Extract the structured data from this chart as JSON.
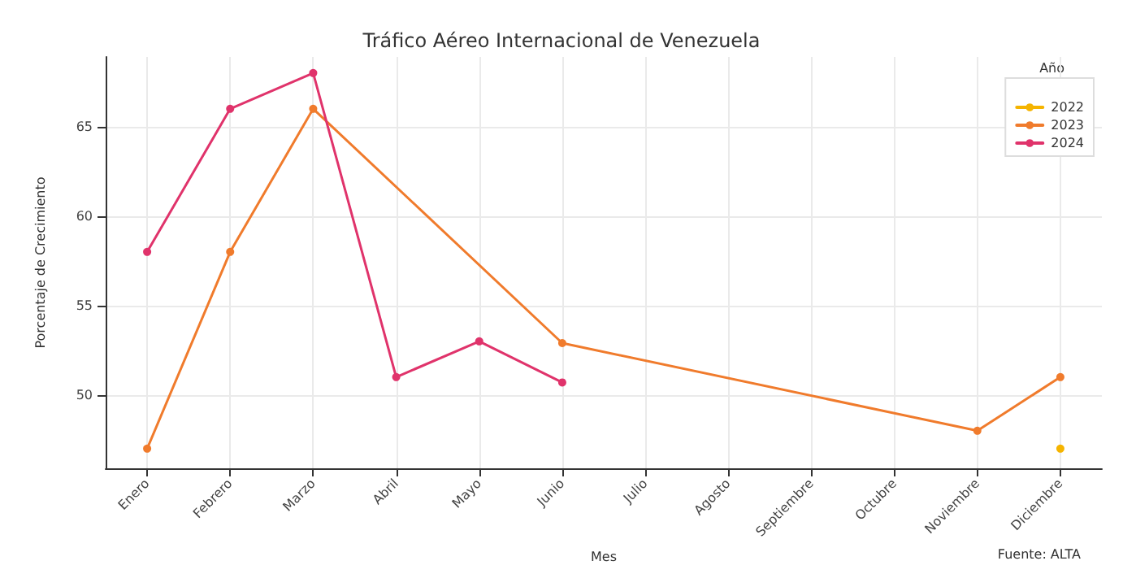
{
  "chart_data": {
    "type": "line",
    "title": "Tráfico Aéreo Internacional de Venezuela",
    "xlabel": "Mes",
    "ylabel": "Porcentaje de Crecimiento",
    "legend_title": "Año",
    "categories": [
      "Enero",
      "Febrero",
      "Marzo",
      "Abril",
      "Mayo",
      "Junio",
      "Julio",
      "Agosto",
      "Septiembre",
      "Octubre",
      "Noviembre",
      "Diciembre"
    ],
    "series": [
      {
        "name": "2022",
        "color": "#f5b400",
        "x": [
          "Diciembre"
        ],
        "values": [
          47
        ]
      },
      {
        "name": "2023",
        "color": "#f07b2c",
        "x": [
          "Enero",
          "Febrero",
          "Marzo",
          "Junio",
          "Noviembre",
          "Diciembre"
        ],
        "values": [
          47,
          58,
          66,
          52.9,
          48,
          51
        ]
      },
      {
        "name": "2024",
        "color": "#e0336b",
        "x": [
          "Enero",
          "Febrero",
          "Marzo",
          "Abril",
          "Mayo",
          "Junio"
        ],
        "values": [
          58,
          66,
          68,
          51,
          53,
          50.7
        ]
      }
    ],
    "ylim": [
      45.9,
      68.9
    ],
    "yticks": [
      50,
      55,
      60,
      65
    ],
    "grid": true,
    "legend": "top right",
    "marker": "circle",
    "line_style": "solid",
    "annotations": [
      "Fuente: ALTA"
    ]
  }
}
